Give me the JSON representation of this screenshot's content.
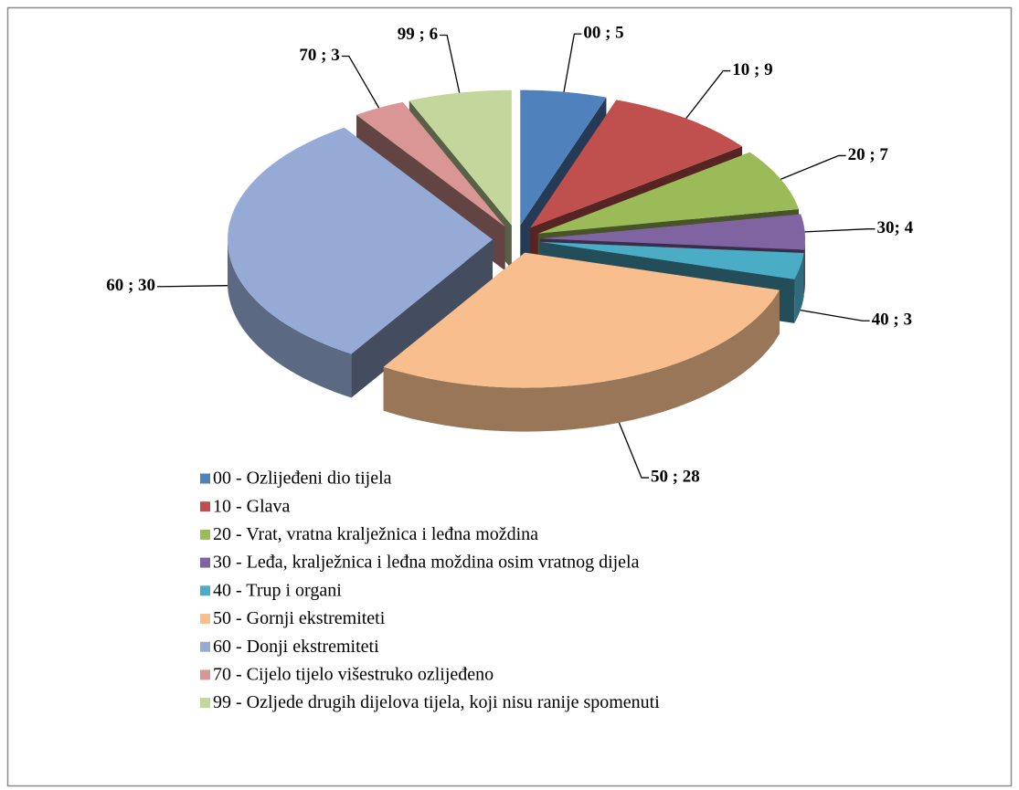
{
  "chart_data": {
    "type": "pie3d",
    "categories": [
      "00 - Ozlijeđeni dio tijela",
      "10 - Glava",
      "20 - Vrat, vratna kralježnica i leđna moždina",
      "30 - Leđa, kralježnica i leđna moždina osim vratnog dijela",
      "40 - Trup i organi",
      "50 - Gornji ekstremiteti",
      "60 - Donji ekstremiteti",
      "70 - Cijelo tijelo višestruko ozlijeđeno",
      "99 - Ozljede drugih dijelova tijela, koji nisu ranije spomenuti"
    ],
    "values": [
      5,
      9,
      7,
      4,
      3,
      28,
      30,
      3,
      6
    ],
    "value_labels": [
      "00 ; 5",
      "10 ; 9",
      "20 ; 7",
      "30; 4",
      "40 ; 3",
      "50 ; 28",
      "60 ; 30",
      "70 ; 3",
      "99 ; 6"
    ],
    "colors": [
      "#4f81bd",
      "#c0504d",
      "#9bbb59",
      "#8064a2",
      "#4bacc6",
      "#f9be8e",
      "#95aad4",
      "#d99694",
      "#c3d69b"
    ],
    "legend": "bottom"
  }
}
